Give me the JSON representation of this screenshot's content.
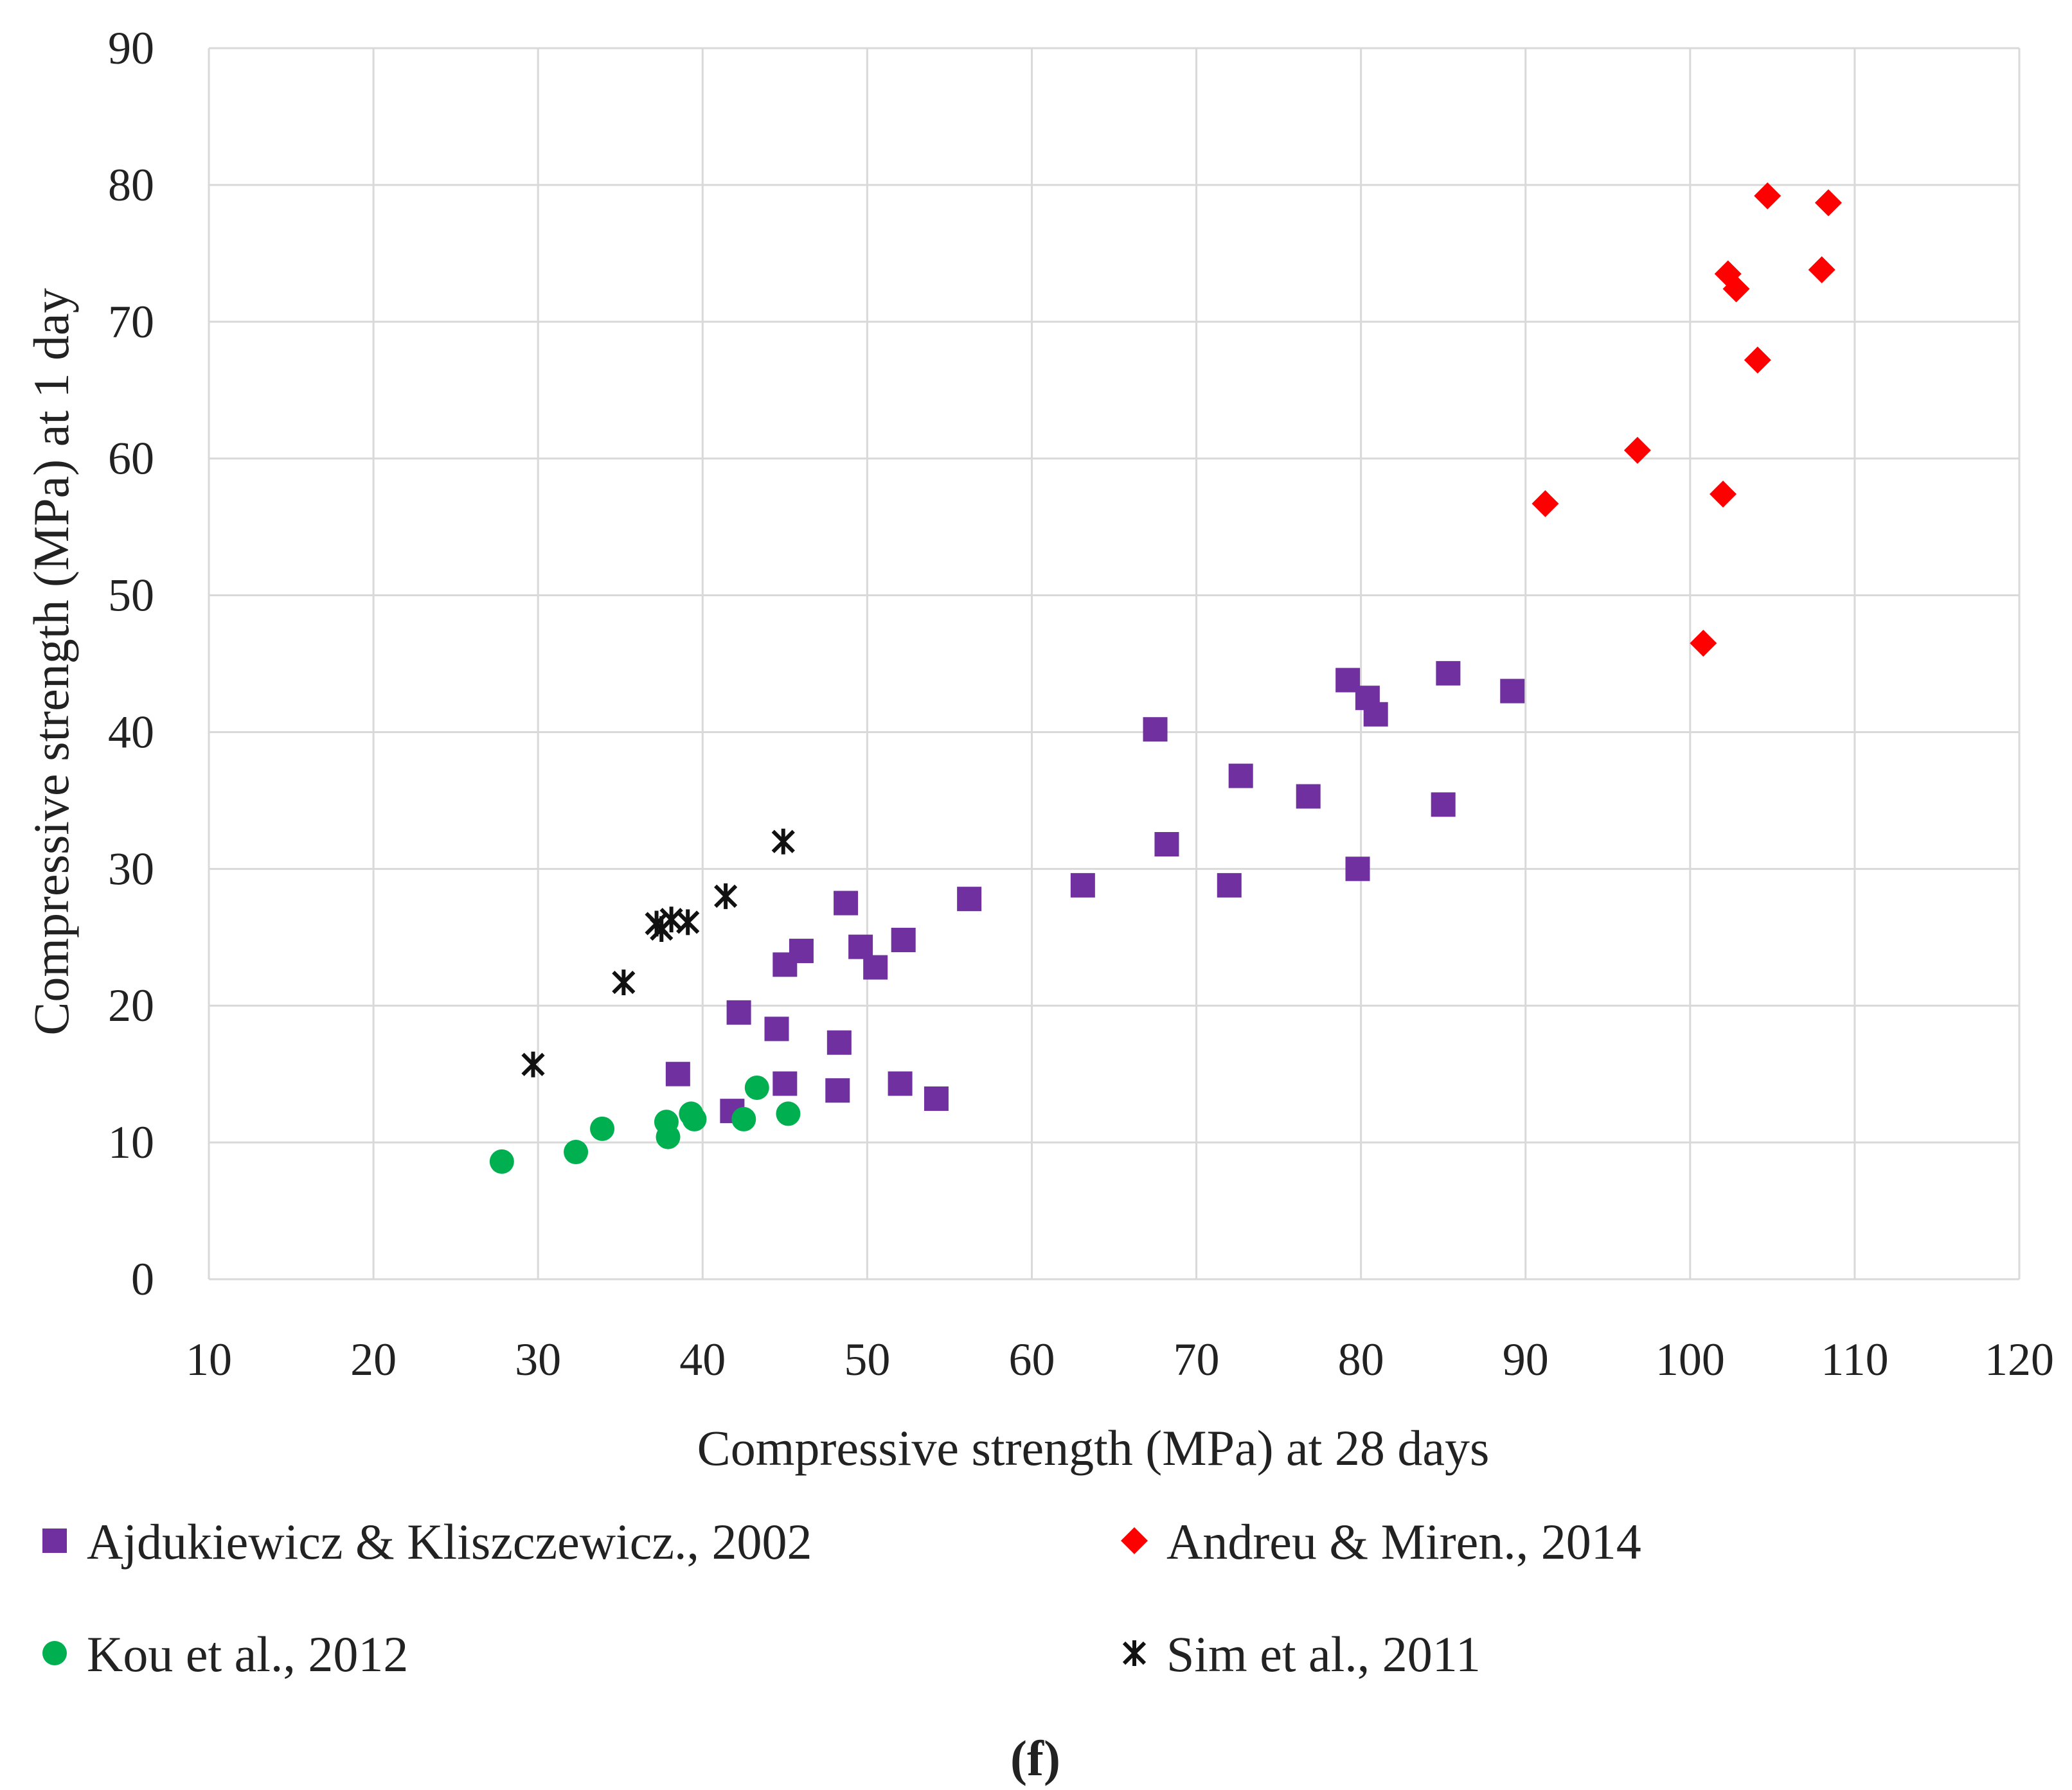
{
  "chart_data": {
    "type": "scatter",
    "title": "",
    "xlabel": "Compressive strength (MPa) at 28 days",
    "ylabel": "Compressive strength (MPa) at 1 day",
    "xlim": [
      10,
      120
    ],
    "ylim": [
      0,
      90
    ],
    "xticks": [
      10,
      20,
      30,
      40,
      50,
      60,
      70,
      80,
      90,
      100,
      110,
      120
    ],
    "yticks": [
      0,
      10,
      20,
      30,
      40,
      50,
      60,
      70,
      80,
      90
    ],
    "grid": true,
    "legend_position": "bottom",
    "caption": "(f)",
    "series": [
      {
        "name": "Ajdukiewicz & Kliszczewicz., 2002",
        "marker": "square",
        "color": "#7030a0",
        "points": [
          [
            38.5,
            15
          ],
          [
            41.8,
            12.3
          ],
          [
            42.2,
            19.5
          ],
          [
            44.5,
            18.3
          ],
          [
            45,
            14.3
          ],
          [
            45,
            23
          ],
          [
            46,
            24
          ],
          [
            48.2,
            13.8
          ],
          [
            48.3,
            17.3
          ],
          [
            48.7,
            27.5
          ],
          [
            49.6,
            24.3
          ],
          [
            50.5,
            22.8
          ],
          [
            52,
            14.3
          ],
          [
            52.2,
            24.8
          ],
          [
            54.2,
            13.2
          ],
          [
            56.2,
            27.8
          ],
          [
            63.1,
            28.8
          ],
          [
            67.5,
            40.2
          ],
          [
            68.2,
            31.8
          ],
          [
            72,
            28.8
          ],
          [
            72.7,
            36.8
          ],
          [
            76.8,
            35.3
          ],
          [
            79.2,
            43.8
          ],
          [
            79.8,
            30
          ],
          [
            80.4,
            42.5
          ],
          [
            80.9,
            41.3
          ],
          [
            85,
            34.7
          ],
          [
            85.3,
            44.3
          ],
          [
            89.2,
            43
          ]
        ]
      },
      {
        "name": "Andreu & Miren., 2014",
        "marker": "diamond",
        "color": "#ff0000",
        "points": [
          [
            91.2,
            56.7
          ],
          [
            96.8,
            60.6
          ],
          [
            100.8,
            46.5
          ],
          [
            102,
            57.4
          ],
          [
            102.3,
            73.5
          ],
          [
            102.8,
            72.4
          ],
          [
            104.1,
            67.2
          ],
          [
            104.7,
            79.2
          ],
          [
            108,
            73.8
          ],
          [
            108.4,
            78.7
          ]
        ]
      },
      {
        "name": "Kou et al., 2012",
        "marker": "circle",
        "color": "#00b050",
        "points": [
          [
            27.8,
            8.6
          ],
          [
            32.3,
            9.3
          ],
          [
            33.9,
            11
          ],
          [
            37.8,
            11.5
          ],
          [
            37.9,
            10.4
          ],
          [
            39.3,
            12.1
          ],
          [
            39.5,
            11.7
          ],
          [
            42.5,
            11.7
          ],
          [
            43.3,
            14
          ],
          [
            45.2,
            12.1
          ]
        ]
      },
      {
        "name": "Sim et al., 2011",
        "marker": "asterisk",
        "color": "#111111",
        "points": [
          [
            29.7,
            15.7
          ],
          [
            35.2,
            21.7
          ],
          [
            37.2,
            26
          ],
          [
            37.5,
            25.6
          ],
          [
            38.1,
            26.3
          ],
          [
            39.1,
            26.1
          ],
          [
            41.4,
            28
          ],
          [
            44.9,
            32
          ]
        ]
      }
    ]
  }
}
